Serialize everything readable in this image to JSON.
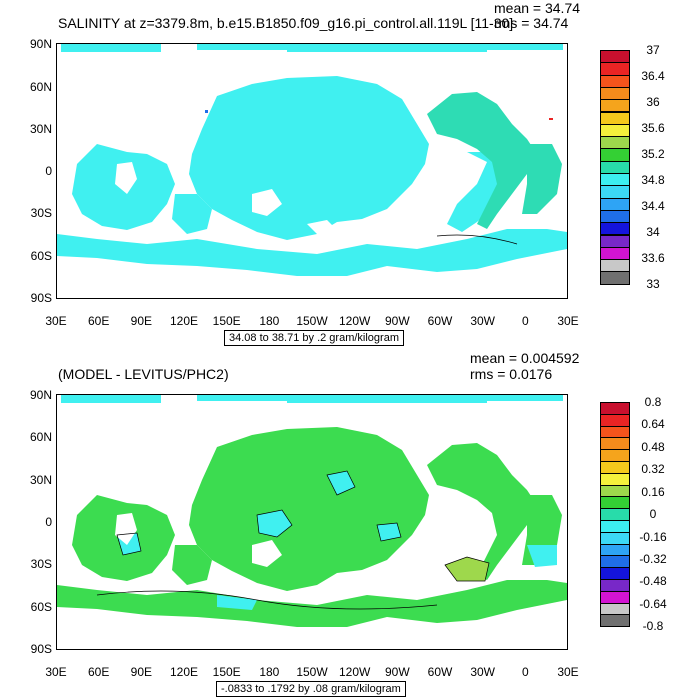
{
  "panel1": {
    "title": "SALINITY at z=3379.8m, b.e15.B1850.f09_g16.pi_control.all.119L [11-30]",
    "mean": "mean = 34.74",
    "rms": "rms = 34.74",
    "note": "34.08 to 38.71 by .2 gram/kilogram",
    "colorbar": {
      "colors": [
        "#c8102e",
        "#ea2424",
        "#f5541c",
        "#f58b1c",
        "#f5a41c",
        "#f5c81c",
        "#f5f03c",
        "#9ed84c",
        "#34d034",
        "#28dcaa",
        "#3ceef0",
        "#3cd8f5",
        "#2ea4f5",
        "#1f6ee8",
        "#1414dc",
        "#7828c8",
        "#d214d2",
        "#c8c8c8",
        "#707070"
      ],
      "labels": [
        "37",
        "36.4",
        "36",
        "35.6",
        "35.2",
        "34.8",
        "34.4",
        "34",
        "33.6",
        "33"
      ]
    }
  },
  "panel2": {
    "title": "(MODEL - LEVITUS/PHC2)",
    "mean": "mean = 0.004592",
    "rms": "rms = 0.0176",
    "note": "-.0833 to .1792 by .08 gram/kilogram",
    "colorbar": {
      "colors": [
        "#c8102e",
        "#ea2424",
        "#f5541c",
        "#f58b1c",
        "#f5a41c",
        "#f5c81c",
        "#f5f03c",
        "#9ed84c",
        "#34d034",
        "#28dcaa",
        "#3ceef0",
        "#3cd8f5",
        "#2ea4f5",
        "#1f6ee8",
        "#1414dc",
        "#7828c8",
        "#d214d2",
        "#c8c8c8",
        "#707070"
      ],
      "labels": [
        "0.8",
        "0.64",
        "0.48",
        "0.32",
        "0.16",
        "0",
        "-0.16",
        "-0.32",
        "-0.48",
        "-0.64",
        "-0.8"
      ]
    }
  },
  "axes": {
    "lat_labels": [
      "90N",
      "60N",
      "30N",
      "0",
      "30S",
      "60S",
      "90S"
    ],
    "lon_labels": [
      "30E",
      "60E",
      "90E",
      "120E",
      "150E",
      "180",
      "150W",
      "120W",
      "90W",
      "60W",
      "30W",
      "0",
      "30E"
    ]
  },
  "colors": {
    "ocean_panel1": "#40f0f0",
    "ocean_panel1_atl": "#2edcb4",
    "ocean_panel2": "#3cdc50",
    "ocean_panel2_alt": "#40f0f0"
  }
}
